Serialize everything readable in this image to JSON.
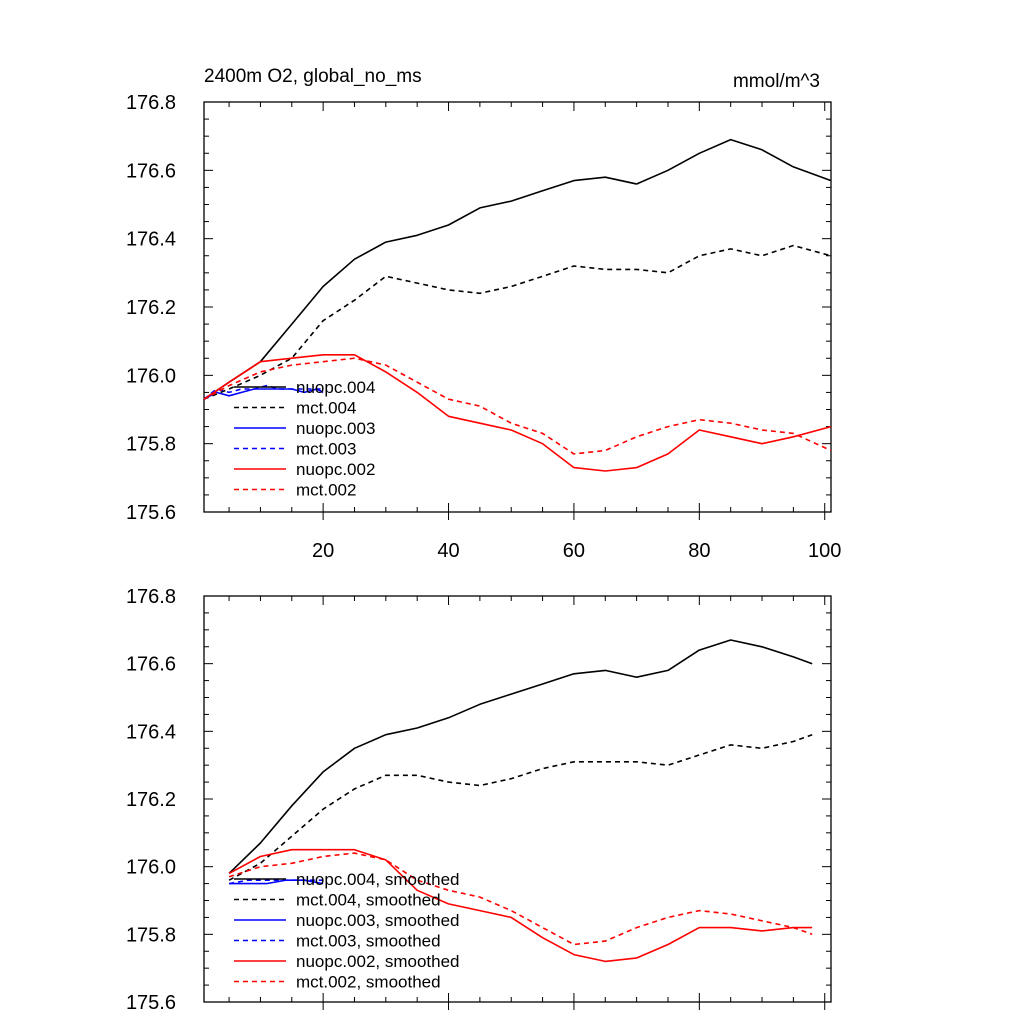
{
  "chart_data": [
    {
      "type": "line",
      "title": "2400m O2, global_no_ms",
      "units": "mmol/m^3",
      "xlim": [
        1,
        101
      ],
      "ylim": [
        175.6,
        176.8
      ],
      "x_ticks": [
        20,
        40,
        60,
        80,
        100
      ],
      "y_ticks": [
        175.6,
        175.8,
        176.0,
        176.2,
        176.4,
        176.6,
        176.8
      ],
      "y_tick_labels": [
        "175.6",
        "175.8",
        "176.0",
        "176.2",
        "176.4",
        "176.6",
        "176.8"
      ],
      "legend_position": "lower-left",
      "series": [
        {
          "name": "nuopc.004",
          "color": "#000000",
          "dash": "solid",
          "x": [
            1,
            5,
            10,
            15,
            20,
            25,
            30,
            35,
            40,
            45,
            50,
            55,
            60,
            65,
            70,
            75,
            80,
            85,
            90,
            95,
            101
          ],
          "y": [
            175.93,
            175.98,
            176.04,
            176.15,
            176.26,
            176.34,
            176.39,
            176.41,
            176.44,
            176.49,
            176.51,
            176.54,
            176.57,
            176.58,
            176.56,
            176.6,
            176.65,
            176.69,
            176.66,
            176.61,
            176.57
          ]
        },
        {
          "name": "mct.004",
          "color": "#000000",
          "dash": "dashed",
          "x": [
            1,
            5,
            10,
            15,
            20,
            25,
            30,
            35,
            40,
            45,
            50,
            55,
            60,
            65,
            70,
            75,
            80,
            85,
            90,
            95,
            101
          ],
          "y": [
            175.93,
            175.96,
            176.0,
            176.05,
            176.16,
            176.22,
            176.29,
            176.27,
            176.25,
            176.24,
            176.26,
            176.29,
            176.32,
            176.31,
            176.31,
            176.3,
            176.35,
            176.37,
            176.35,
            176.38,
            176.35
          ]
        },
        {
          "name": "nuopc.003",
          "color": "#0000ff",
          "dash": "solid",
          "x": [
            1,
            3,
            5,
            7,
            9,
            11,
            13,
            15,
            17,
            19,
            20
          ],
          "y": [
            175.93,
            175.95,
            175.94,
            175.95,
            175.96,
            175.96,
            175.96,
            175.96,
            175.95,
            175.96,
            175.95
          ]
        },
        {
          "name": "mct.003",
          "color": "#0000ff",
          "dash": "dashed",
          "x": [
            1,
            3,
            5,
            7,
            9,
            11,
            13,
            15,
            17,
            19,
            20
          ],
          "y": [
            175.93,
            175.96,
            175.95,
            175.96,
            175.96,
            175.97,
            175.96,
            175.96,
            175.96,
            175.96,
            175.96
          ]
        },
        {
          "name": "nuopc.002",
          "color": "#ff0000",
          "dash": "solid",
          "x": [
            1,
            5,
            10,
            15,
            20,
            25,
            30,
            35,
            40,
            45,
            50,
            55,
            60,
            65,
            70,
            75,
            80,
            85,
            90,
            95,
            101
          ],
          "y": [
            175.93,
            175.98,
            176.04,
            176.05,
            176.06,
            176.06,
            176.01,
            175.95,
            175.88,
            175.86,
            175.84,
            175.8,
            175.73,
            175.72,
            175.73,
            175.77,
            175.84,
            175.82,
            175.8,
            175.82,
            175.85
          ]
        },
        {
          "name": "mct.002",
          "color": "#ff0000",
          "dash": "dashed",
          "x": [
            1,
            5,
            10,
            15,
            20,
            25,
            30,
            35,
            40,
            45,
            50,
            55,
            60,
            65,
            70,
            75,
            80,
            85,
            90,
            95,
            101
          ],
          "y": [
            175.93,
            175.97,
            176.01,
            176.03,
            176.04,
            176.05,
            176.03,
            175.98,
            175.93,
            175.91,
            175.86,
            175.83,
            175.77,
            175.78,
            175.82,
            175.85,
            175.87,
            175.86,
            175.84,
            175.83,
            175.78
          ]
        }
      ]
    },
    {
      "type": "line",
      "xlim": [
        1,
        101
      ],
      "ylim": [
        175.6,
        176.8
      ],
      "x_ticks": [
        20,
        40,
        60,
        80,
        100
      ],
      "y_ticks": [
        175.6,
        175.8,
        176.0,
        176.2,
        176.4,
        176.6,
        176.8
      ],
      "y_tick_labels": [
        "175.6",
        "175.8",
        "176.0",
        "176.2",
        "176.4",
        "176.6",
        "176.8"
      ],
      "legend_position": "lower-left",
      "series": [
        {
          "name": "nuopc.004, smoothed",
          "color": "#000000",
          "dash": "solid",
          "x": [
            5,
            10,
            15,
            20,
            25,
            30,
            35,
            40,
            45,
            50,
            55,
            60,
            65,
            70,
            75,
            80,
            85,
            90,
            95,
            98
          ],
          "y": [
            175.98,
            176.07,
            176.18,
            176.28,
            176.35,
            176.39,
            176.41,
            176.44,
            176.48,
            176.51,
            176.54,
            176.57,
            176.58,
            176.56,
            176.58,
            176.64,
            176.67,
            176.65,
            176.62,
            176.6
          ]
        },
        {
          "name": "mct.004, smoothed",
          "color": "#000000",
          "dash": "dashed",
          "x": [
            5,
            10,
            15,
            20,
            25,
            30,
            35,
            40,
            45,
            50,
            55,
            60,
            65,
            70,
            75,
            80,
            85,
            90,
            95,
            98
          ],
          "y": [
            175.96,
            176.01,
            176.09,
            176.17,
            176.23,
            176.27,
            176.27,
            176.25,
            176.24,
            176.26,
            176.29,
            176.31,
            176.31,
            176.31,
            176.3,
            176.33,
            176.36,
            176.35,
            176.37,
            176.39
          ]
        },
        {
          "name": "nuopc.003, smoothed",
          "color": "#0000ff",
          "dash": "solid",
          "x": [
            5,
            8,
            11,
            14,
            17,
            20
          ],
          "y": [
            175.95,
            175.95,
            175.95,
            175.96,
            175.96,
            175.95
          ]
        },
        {
          "name": "mct.003, smoothed",
          "color": "#0000ff",
          "dash": "dashed",
          "x": [
            5,
            8,
            11,
            14,
            17,
            20
          ],
          "y": [
            175.95,
            175.96,
            175.96,
            175.96,
            175.96,
            175.96
          ]
        },
        {
          "name": "nuopc.002, smoothed",
          "color": "#ff0000",
          "dash": "solid",
          "x": [
            5,
            10,
            15,
            20,
            25,
            30,
            35,
            40,
            45,
            50,
            55,
            60,
            65,
            70,
            75,
            80,
            85,
            90,
            95,
            98
          ],
          "y": [
            175.98,
            176.03,
            176.05,
            176.05,
            176.05,
            176.02,
            175.93,
            175.89,
            175.87,
            175.85,
            175.79,
            175.74,
            175.72,
            175.73,
            175.77,
            175.82,
            175.82,
            175.81,
            175.82,
            175.82
          ]
        },
        {
          "name": "mct.002, smoothed",
          "color": "#ff0000",
          "dash": "dashed",
          "x": [
            5,
            10,
            15,
            20,
            25,
            30,
            35,
            40,
            45,
            50,
            55,
            60,
            65,
            70,
            75,
            80,
            85,
            90,
            95,
            98
          ],
          "y": [
            175.97,
            176.0,
            176.01,
            176.03,
            176.04,
            176.02,
            175.96,
            175.93,
            175.91,
            175.87,
            175.82,
            175.77,
            175.78,
            175.82,
            175.85,
            175.87,
            175.86,
            175.84,
            175.82,
            175.8
          ]
        }
      ]
    }
  ]
}
